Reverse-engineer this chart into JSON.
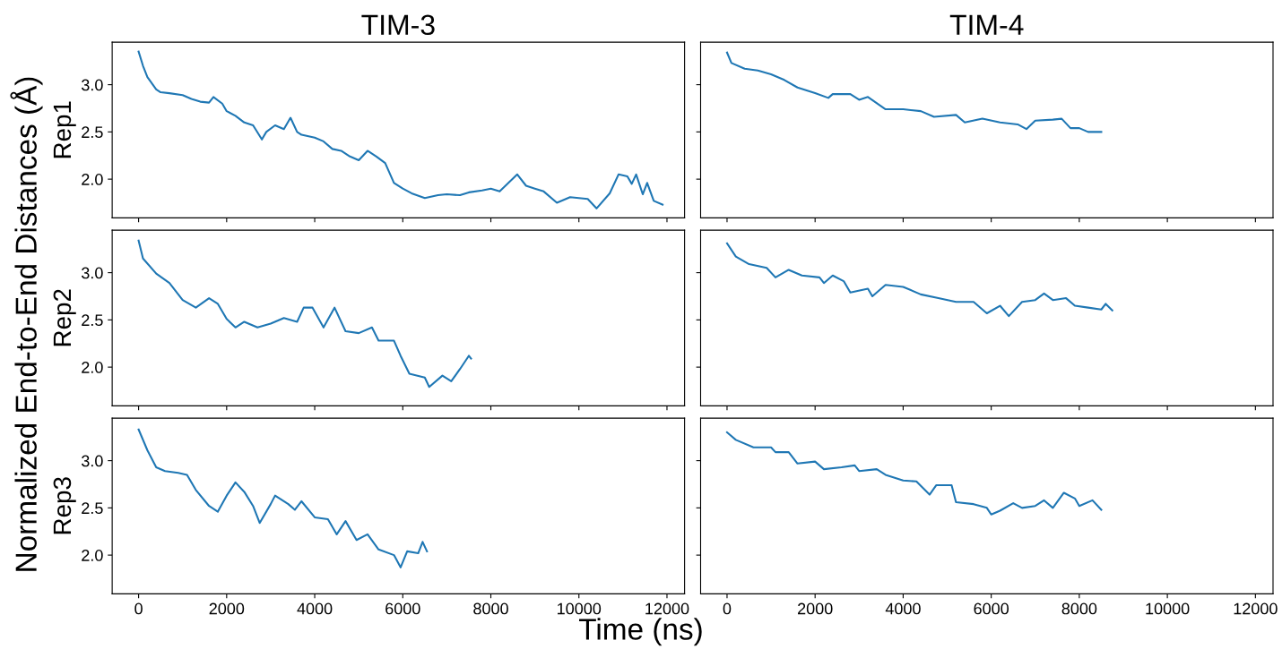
{
  "chart_data": [
    {
      "type": "line",
      "title": "TIM-3",
      "ylabel": "Rep1",
      "tick_labels": "y",
      "xlim": [
        -600,
        12400
      ],
      "ylim": [
        1.59,
        3.45
      ],
      "xticks": [
        0,
        2000,
        4000,
        6000,
        8000,
        10000,
        12000
      ],
      "yticks": [
        {
          "value": 2,
          "label": "2.0"
        },
        {
          "value": 2.5,
          "label": "2.5"
        },
        {
          "value": 3,
          "label": "3.0"
        }
      ],
      "grid": false,
      "line_style": "solid",
      "annotations": [
        "Normalized End-to-End Distances (Å)"
      ],
      "series": [
        {
          "color": "#1f77b4",
          "x": [
            0,
            100,
            200,
            400,
            500,
            700,
            1000,
            1200,
            1400,
            1600,
            1700,
            1900,
            2000,
            2200,
            2400,
            2600,
            2800,
            2900,
            3100,
            3300,
            3450,
            3600,
            3700,
            4000,
            4200,
            4400,
            4600,
            4800,
            5000,
            5200,
            5400,
            5600,
            5800,
            6000,
            6200,
            6500,
            6800,
            7000,
            7300,
            7500,
            7800,
            8000,
            8200,
            8400,
            8600,
            8800,
            9000,
            9200,
            9500,
            9800,
            10000,
            10200,
            10400,
            10700,
            10900,
            11100,
            11200,
            11300,
            11450,
            11550,
            11700,
            11900
          ],
          "values": [
            3.35,
            3.2,
            3.08,
            2.95,
            2.92,
            2.91,
            2.89,
            2.85,
            2.82,
            2.81,
            2.87,
            2.8,
            2.72,
            2.67,
            2.6,
            2.57,
            2.42,
            2.5,
            2.57,
            2.53,
            2.65,
            2.5,
            2.47,
            2.44,
            2.4,
            2.32,
            2.3,
            2.24,
            2.2,
            2.3,
            2.24,
            2.17,
            1.96,
            1.9,
            1.85,
            1.8,
            1.83,
            1.84,
            1.83,
            1.86,
            1.88,
            1.9,
            1.87,
            1.96,
            2.05,
            1.93,
            1.9,
            1.87,
            1.75,
            1.81,
            1.8,
            1.79,
            1.69,
            1.85,
            2.05,
            2.03,
            1.95,
            2.05,
            1.84,
            1.96,
            1.77,
            1.73
          ]
        }
      ]
    },
    {
      "type": "line",
      "title": "TIM-4",
      "tick_labels": false,
      "xlim": [
        -600,
        12400
      ],
      "ylim": [
        1.59,
        3.45
      ],
      "xticks": [
        0,
        2000,
        4000,
        6000,
        8000,
        10000,
        12000
      ],
      "yticks": [
        {
          "value": 2,
          "label": null
        },
        {
          "value": 2.5,
          "label": null
        },
        {
          "value": 3,
          "label": null
        }
      ],
      "grid": false,
      "line_style": "solid",
      "series": [
        {
          "color": "#1f77b4",
          "x": [
            0,
            100,
            400,
            700,
            1000,
            1300,
            1600,
            2000,
            2300,
            2400,
            2800,
            3000,
            3200,
            3600,
            4000,
            4400,
            4700,
            5200,
            5400,
            5800,
            6200,
            6600,
            6800,
            7000,
            7400,
            7600,
            7800,
            8000,
            8200,
            8500
          ],
          "values": [
            3.34,
            3.23,
            3.17,
            3.15,
            3.11,
            3.05,
            2.97,
            2.91,
            2.86,
            2.9,
            2.9,
            2.84,
            2.87,
            2.74,
            2.74,
            2.72,
            2.66,
            2.68,
            2.6,
            2.64,
            2.6,
            2.58,
            2.53,
            2.62,
            2.63,
            2.64,
            2.54,
            2.54,
            2.5,
            2.5
          ]
        }
      ]
    },
    {
      "type": "line",
      "ylabel": "Rep2",
      "tick_labels": "y",
      "xlim": [
        -600,
        12400
      ],
      "ylim": [
        1.59,
        3.45
      ],
      "xticks": [
        0,
        2000,
        4000,
        6000,
        8000,
        10000,
        12000
      ],
      "yticks": [
        {
          "value": 2,
          "label": "2.0"
        },
        {
          "value": 2.5,
          "label": "2.5"
        },
        {
          "value": 3,
          "label": "3.0"
        }
      ],
      "grid": false,
      "line_style": "solid",
      "series": [
        {
          "color": "#1f77b4",
          "x": [
            0,
            100,
            400,
            700,
            1000,
            1300,
            1600,
            1800,
            2000,
            2200,
            2400,
            2700,
            3000,
            3300,
            3600,
            3750,
            3950,
            4200,
            4450,
            4700,
            5000,
            5300,
            5450,
            5800,
            5950,
            6150,
            6500,
            6600,
            6900,
            7100,
            7300,
            7500,
            7550
          ],
          "values": [
            3.34,
            3.15,
            2.99,
            2.89,
            2.71,
            2.63,
            2.73,
            2.67,
            2.51,
            2.42,
            2.48,
            2.42,
            2.46,
            2.52,
            2.48,
            2.63,
            2.63,
            2.42,
            2.63,
            2.38,
            2.36,
            2.42,
            2.28,
            2.28,
            2.12,
            1.93,
            1.89,
            1.79,
            1.91,
            1.85,
            1.98,
            2.12,
            2.09
          ]
        }
      ]
    },
    {
      "type": "line",
      "tick_labels": false,
      "xlim": [
        -600,
        12400
      ],
      "ylim": [
        1.59,
        3.45
      ],
      "xticks": [
        0,
        2000,
        4000,
        6000,
        8000,
        10000,
        12000
      ],
      "yticks": [
        {
          "value": 2,
          "label": null
        },
        {
          "value": 2.5,
          "label": null
        },
        {
          "value": 3,
          "label": null
        }
      ],
      "grid": false,
      "line_style": "solid",
      "series": [
        {
          "color": "#1f77b4",
          "x": [
            0,
            200,
            500,
            900,
            1100,
            1400,
            1700,
            2100,
            2200,
            2400,
            2650,
            2800,
            3200,
            3300,
            3600,
            4000,
            4400,
            4800,
            5200,
            5600,
            5900,
            6200,
            6400,
            6700,
            7000,
            7200,
            7400,
            7700,
            7900,
            8200,
            8500,
            8600,
            8750
          ],
          "values": [
            3.31,
            3.17,
            3.09,
            3.05,
            2.95,
            3.03,
            2.97,
            2.95,
            2.89,
            2.97,
            2.91,
            2.79,
            2.83,
            2.75,
            2.87,
            2.85,
            2.77,
            2.73,
            2.69,
            2.69,
            2.57,
            2.65,
            2.54,
            2.69,
            2.71,
            2.78,
            2.71,
            2.73,
            2.65,
            2.63,
            2.61,
            2.67,
            2.6
          ]
        }
      ]
    },
    {
      "type": "line",
      "ylabel": "Rep3",
      "xlim": [
        -600,
        12400
      ],
      "ylim": [
        1.59,
        3.45
      ],
      "xticks": [
        0,
        2000,
        4000,
        6000,
        8000,
        10000,
        12000
      ],
      "yticks": [
        {
          "value": 2,
          "label": "2.0"
        },
        {
          "value": 2.5,
          "label": "2.5"
        },
        {
          "value": 3,
          "label": "3.0"
        }
      ],
      "grid": false,
      "line_style": "solid",
      "annotations": [
        "Time (ns)"
      ],
      "series": [
        {
          "color": "#1f77b4",
          "x": [
            0,
            200,
            400,
            600,
            900,
            1100,
            1300,
            1600,
            1800,
            2000,
            2200,
            2400,
            2600,
            2750,
            3000,
            3100,
            3400,
            3550,
            3700,
            4000,
            4300,
            4500,
            4700,
            4950,
            5200,
            5450,
            5800,
            5950,
            6100,
            6350,
            6450,
            6550
          ],
          "values": [
            3.33,
            3.11,
            2.93,
            2.89,
            2.87,
            2.85,
            2.69,
            2.52,
            2.46,
            2.63,
            2.77,
            2.67,
            2.52,
            2.34,
            2.54,
            2.63,
            2.54,
            2.48,
            2.57,
            2.4,
            2.38,
            2.22,
            2.36,
            2.16,
            2.22,
            2.06,
            2.0,
            1.87,
            2.04,
            2.02,
            2.14,
            2.04
          ]
        }
      ]
    },
    {
      "type": "line",
      "tick_labels": "x",
      "xlim": [
        -600,
        12400
      ],
      "ylim": [
        1.59,
        3.45
      ],
      "xticks": [
        0,
        2000,
        4000,
        6000,
        8000,
        10000,
        12000
      ],
      "yticks": [
        {
          "value": 2,
          "label": null
        },
        {
          "value": 2.5,
          "label": null
        },
        {
          "value": 3,
          "label": null
        }
      ],
      "grid": false,
      "line_style": "solid",
      "series": [
        {
          "color": "#1f77b4",
          "x": [
            0,
            200,
            600,
            1000,
            1100,
            1400,
            1600,
            2000,
            2200,
            2600,
            2900,
            3000,
            3400,
            3600,
            4000,
            4300,
            4600,
            4750,
            5100,
            5200,
            5600,
            5900,
            6000,
            6200,
            6500,
            6700,
            7000,
            7200,
            7400,
            7650,
            7900,
            8000,
            8300,
            8500
          ],
          "values": [
            3.3,
            3.22,
            3.14,
            3.14,
            3.09,
            3.09,
            2.97,
            2.99,
            2.91,
            2.93,
            2.95,
            2.89,
            2.91,
            2.85,
            2.79,
            2.78,
            2.64,
            2.74,
            2.74,
            2.56,
            2.54,
            2.5,
            2.43,
            2.47,
            2.55,
            2.5,
            2.52,
            2.58,
            2.5,
            2.66,
            2.6,
            2.52,
            2.58,
            2.48
          ]
        }
      ]
    }
  ]
}
